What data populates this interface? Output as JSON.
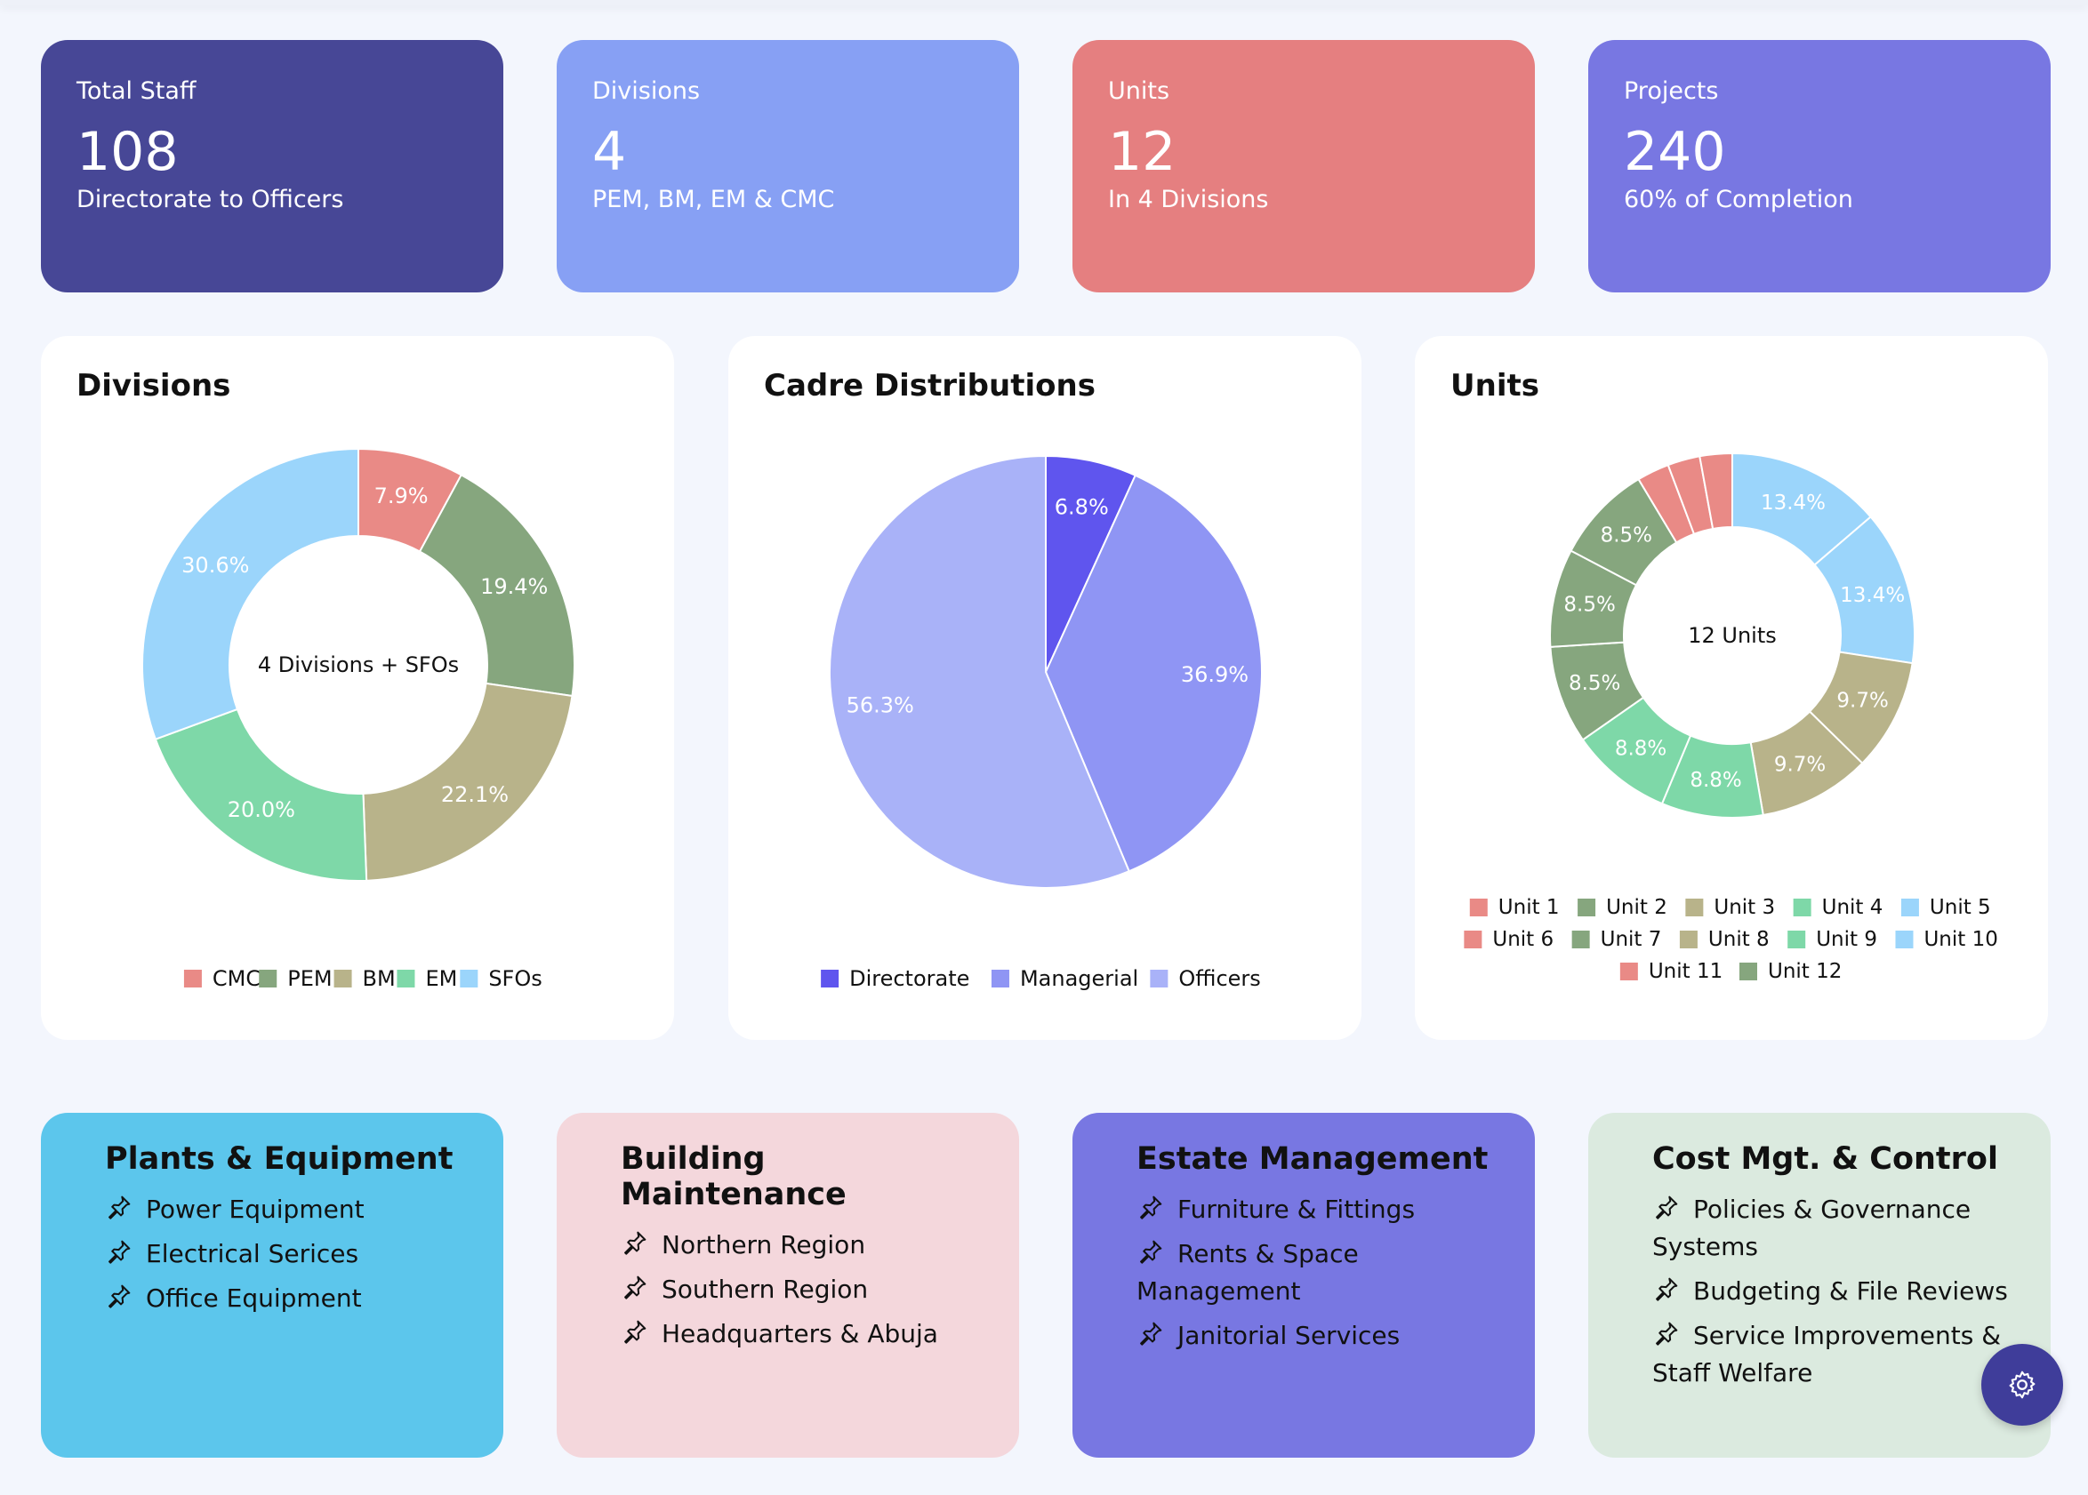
{
  "stats": [
    {
      "label": "Total Staff",
      "value": "108",
      "sub": "Directorate to Officers",
      "color": "#474796"
    },
    {
      "label": "Divisions",
      "value": "4",
      "sub": "PEM, BM, EM & CMC",
      "color": "#87a0f4"
    },
    {
      "label": "Units",
      "value": "12",
      "sub": "In 4 Divisions",
      "color": "#e57f80"
    },
    {
      "label": "Projects",
      "value": "240",
      "sub": "60% of Completion",
      "color": "#7877e2"
    }
  ],
  "divisions_card": {
    "title": "Divisions",
    "center_label": "4 Divisions + SFOs"
  },
  "cadre_card": {
    "title": "Cadre Distributions"
  },
  "units_card": {
    "title": "Units",
    "center_label": "12 Units"
  },
  "chart_data": [
    {
      "type": "pie",
      "variant": "donut",
      "title": "Divisions",
      "labels": [
        "CMC",
        "PEM",
        "BM",
        "EM",
        "SFOs"
      ],
      "values": [
        7.9,
        19.4,
        22.1,
        20.0,
        30.6
      ],
      "value_labels": [
        "7.9%",
        "19.4%",
        "22.1%",
        "20.0%",
        "30.6%"
      ],
      "colors": [
        "#e98a86",
        "#86a67e",
        "#b8b38a",
        "#7ed8a8",
        "#9bd5fb"
      ],
      "legend_position": "bottom"
    },
    {
      "type": "pie",
      "title": "Cadre Distributions",
      "labels": [
        "Directorate",
        "Managerial",
        "Officers"
      ],
      "values": [
        6.8,
        36.9,
        56.3
      ],
      "value_labels": [
        "6.8%",
        "36.9%",
        "56.3%"
      ],
      "colors": [
        "#5f55ee",
        "#8f95f4",
        "#a9b2f8"
      ],
      "legend_position": "bottom"
    },
    {
      "type": "pie",
      "variant": "donut",
      "title": "Units",
      "labels": [
        "Unit 1",
        "Unit 2",
        "Unit 3",
        "Unit 4",
        "Unit 5",
        "Unit 6",
        "Unit 7",
        "Unit 8",
        "Unit 9",
        "Unit 10",
        "Unit 11",
        "Unit 12"
      ],
      "values": [
        2.8,
        8.5,
        9.7,
        8.8,
        13.4,
        2.8,
        8.5,
        9.7,
        8.8,
        13.4,
        2.8,
        8.5
      ],
      "display_order": [
        4,
        9,
        2,
        7,
        3,
        8,
        1,
        6,
        11,
        0,
        5,
        10
      ],
      "value_labels": {
        "Unit 5": "13.4%",
        "Unit 10": "13.4%",
        "Unit 3": "9.7%",
        "Unit 8": "9.7%",
        "Unit 4": "8.8%",
        "Unit 9": "8.8%",
        "Unit 2": "8.5%",
        "Unit 7": "8.5%",
        "Unit 12": "8.5%"
      },
      "colors": [
        "#e98a86",
        "#86a67e",
        "#b8b38a",
        "#7ed8a8",
        "#9bd5fb",
        "#e98a86",
        "#86a67e",
        "#b8b38a",
        "#7ed8a8",
        "#9bd5fb",
        "#e98a86",
        "#86a67e"
      ],
      "legend_position": "bottom"
    }
  ],
  "info_cards": [
    {
      "title": "Plants & Equipment",
      "items": [
        "Power Equipment",
        "Electrical Serices",
        "Office Equipment"
      ],
      "color": "#5cc6ec"
    },
    {
      "title": "Building Maintenance",
      "items": [
        "Northern Region",
        "Southern Region",
        "Headquarters & Abuja"
      ],
      "color": "#f4d7dc"
    },
    {
      "title": "Estate Management",
      "items": [
        "Furniture & Fittings",
        "Rents & Space Management",
        "Janitorial Services"
      ],
      "color": "#7877e2"
    },
    {
      "title": "Cost Mgt. & Control",
      "items": [
        "Policies & Governance Systems",
        "Budgeting & File Reviews",
        "Service Improvements & Staff Welfare"
      ],
      "color": "#dbeadf"
    }
  ],
  "icons": {
    "pin": "pushpin-icon",
    "settings": "gear-icon"
  }
}
